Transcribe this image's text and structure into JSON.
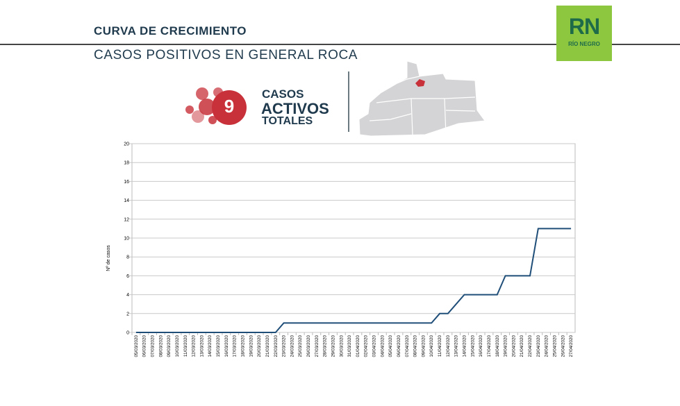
{
  "header": {
    "title": "CURVA DE CRECIMIENTO",
    "subtitle": "CASOS POSITIVOS EN GENERAL ROCA"
  },
  "logo": {
    "text": "RN",
    "subtext": "RÍO NEGRO",
    "bg_color": "#8dc63f",
    "fg_color": "#1e6b4a"
  },
  "kpi": {
    "value": "9",
    "line1": "CASOS",
    "line2": "ACTIVOS",
    "line3": "TOTALES",
    "accent_color": "#c8313a"
  },
  "map": {
    "region_highlight_color": "#c8313a",
    "region_color": "#d4d4d6"
  },
  "chart_data": {
    "type": "line",
    "title": "",
    "xlabel": "",
    "ylabel": "Nº de casos",
    "ylim": [
      0,
      20
    ],
    "yticks": [
      0,
      2,
      4,
      6,
      8,
      10,
      12,
      14,
      16,
      18,
      20
    ],
    "grid": true,
    "line_color": "#1f4e79",
    "categories": [
      "05/03/2020",
      "06/03/2020",
      "07/03/2020",
      "08/03/2020",
      "09/03/2020",
      "10/03/2020",
      "11/03/2020",
      "12/03/2020",
      "13/03/2020",
      "14/03/2020",
      "15/03/2020",
      "16/03/2020",
      "17/03/2020",
      "18/03/2020",
      "19/03/2020",
      "20/03/2020",
      "21/03/2020",
      "22/03/2020",
      "23/03/2020",
      "24/03/2020",
      "25/03/2020",
      "26/03/2020",
      "27/03/2020",
      "28/03/2020",
      "29/03/2020",
      "30/03/2020",
      "31/03/2020",
      "01/04/2020",
      "02/04/2020",
      "03/04/2020",
      "04/04/2020",
      "05/04/2020",
      "06/04/2020",
      "07/04/2020",
      "08/04/2020",
      "09/04/2020",
      "10/04/2020",
      "11/04/2020",
      "12/04/2020",
      "13/04/2020",
      "14/04/2020",
      "15/04/2020",
      "16/04/2020",
      "17/04/2020",
      "18/04/2020",
      "19/04/2020",
      "20/04/2020",
      "21/04/2020",
      "22/04/2020",
      "23/04/2020",
      "24/04/2020",
      "25/04/2020",
      "26/04/2020",
      "27/04/2020"
    ],
    "values": [
      0,
      0,
      0,
      0,
      0,
      0,
      0,
      0,
      0,
      0,
      0,
      0,
      0,
      0,
      0,
      0,
      0,
      0,
      1,
      1,
      1,
      1,
      1,
      1,
      1,
      1,
      1,
      1,
      1,
      1,
      1,
      1,
      1,
      1,
      1,
      1,
      1,
      2,
      2,
      3,
      4,
      4,
      4,
      4,
      4,
      6,
      6,
      6,
      6,
      11,
      11,
      11,
      11,
      11
    ]
  }
}
